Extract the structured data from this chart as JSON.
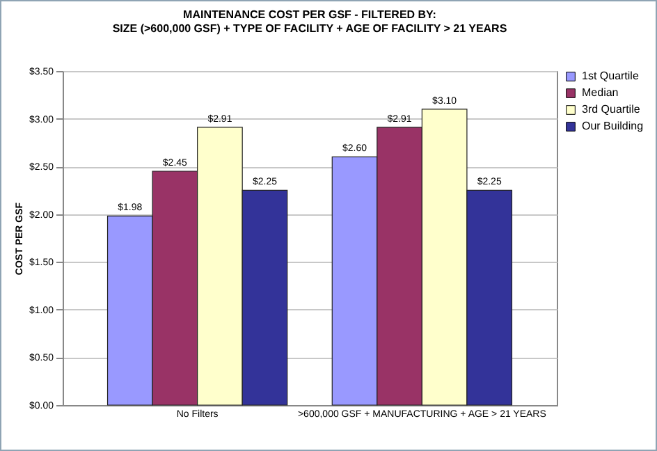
{
  "chart_data": {
    "type": "bar",
    "title": [
      "MAINTENANCE COST PER GSF - FILTERED BY:",
      "SIZE (>600,000 GSF) + TYPE OF FACILITY + AGE OF FACILITY > 21 YEARS"
    ],
    "ylabel": "COST PER GSF",
    "categories": [
      "No Filters",
      ">600,000 GSF + MANUFACTURING + AGE > 21 YEARS"
    ],
    "series": [
      {
        "name": "1st Quartile",
        "color": "#9999ff",
        "values": [
          1.98,
          2.6
        ],
        "value_labels": [
          "$1.98",
          "$2.60"
        ]
      },
      {
        "name": "Median",
        "color": "#993366",
        "values": [
          2.45,
          2.91
        ],
        "value_labels": [
          "$2.45",
          "$2.91"
        ]
      },
      {
        "name": "3rd Quartile",
        "color": "#ffffcc",
        "values": [
          2.91,
          3.1
        ],
        "value_labels": [
          "$2.91",
          "$3.10"
        ]
      },
      {
        "name": "Our Building",
        "color": "#333399",
        "values": [
          2.25,
          2.25
        ],
        "value_labels": [
          "$2.25",
          "$2.25"
        ]
      }
    ],
    "ylim": [
      0,
      3.5
    ],
    "yticks": [
      {
        "value": 0,
        "label": "$0.00"
      },
      {
        "value": 0.5,
        "label": "$0.50"
      },
      {
        "value": 1,
        "label": "$1.00"
      },
      {
        "value": 1.5,
        "label": "$1.50"
      },
      {
        "value": 2,
        "label": "$2.00"
      },
      {
        "value": 2.5,
        "label": "$2.50"
      },
      {
        "value": 3,
        "label": "$3.00"
      },
      {
        "value": 3.5,
        "label": "$3.50"
      }
    ],
    "grid": "y",
    "legend": "right"
  }
}
